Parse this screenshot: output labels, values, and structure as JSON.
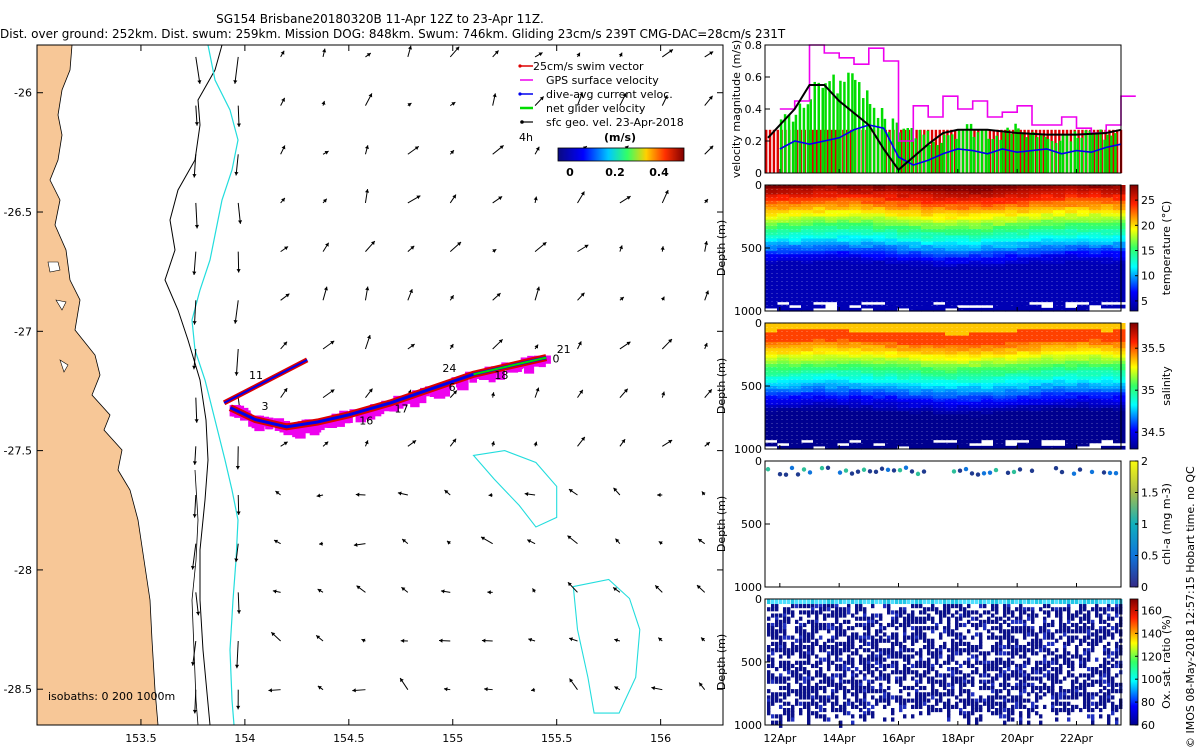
{
  "header": {
    "line1": "SG154 Brisbane20180320B 11-Apr 12Z to 23-Apr 11Z.",
    "line2": "Dist. over ground: 252km. Dist. swum: 259km. Mission DOG: 848km. Swum: 746km. Gliding 23cm/s 239T CMG-DAC=28cm/s 231T"
  },
  "credit": "© IMOS 08-May-2018 12:57:15 Hobart time. no QC",
  "colors": {
    "land": "#f7c797",
    "coast": "#000000",
    "iso200": "#22dddd",
    "swim": "#dd0000",
    "gps": "#ee00ee",
    "dac": "#0000ee",
    "netglider": "#00dd00",
    "sfc": "#000000"
  },
  "chart_data": [
    {
      "type": "map",
      "name": "track-map",
      "xlim": [
        153,
        156.3
      ],
      "ylim": [
        -28.65,
        -25.8
      ],
      "xticks": [
        153.5,
        154,
        154.5,
        155,
        155.5,
        156
      ],
      "yticks": [
        -26,
        -26.5,
        -27,
        -27.5,
        -28,
        -28.5
      ],
      "xticklabels": [
        "153.5",
        "154",
        "154.5",
        "155",
        "155.5",
        "156"
      ],
      "yticklabels": [
        "-26",
        "-26.5",
        "-27",
        "-27.5",
        "-28",
        "-28.5"
      ],
      "legend": {
        "items": [
          "25cm/s swim vector",
          "GPS surface velocity",
          "dive-avg current veloc.",
          "net glider velocity",
          "sfc geo. vel. 23-Apr-2018"
        ],
        "time_label": "4h",
        "unit_label": "(m/s)",
        "colorbar_ticks": [
          "0",
          "0.2",
          "0.4"
        ],
        "colorbar_range": [
          0,
          0.5
        ]
      },
      "isobath_label": "isobaths: 0   200  1000m",
      "track_north_leg": {
        "lon": [
          153.9,
          154.3
        ],
        "lat": [
          -27.3,
          -27.12
        ]
      },
      "track_main": {
        "lon": [
          153.93,
          154.05,
          154.2,
          154.35,
          154.5,
          154.7,
          154.9,
          155.1,
          155.3,
          155.45
        ],
        "lat": [
          -27.32,
          -27.37,
          -27.4,
          -27.38,
          -27.35,
          -27.3,
          -27.24,
          -27.18,
          -27.14,
          -27.11
        ]
      },
      "day_labels": [
        {
          "text": "3",
          "lon": 154.08,
          "lat": -27.33
        },
        {
          "text": "11",
          "lon": 154.02,
          "lat": -27.2
        },
        {
          "text": "16",
          "lon": 154.55,
          "lat": -27.39
        },
        {
          "text": "17",
          "lon": 154.72,
          "lat": -27.34
        },
        {
          "text": "6",
          "lon": 154.98,
          "lat": -27.25
        },
        {
          "text": "24",
          "lon": 154.95,
          "lat": -27.17
        },
        {
          "text": "18",
          "lon": 155.2,
          "lat": -27.2
        },
        {
          "text": "21",
          "lon": 155.5,
          "lat": -27.09
        },
        {
          "text": "0",
          "lon": 155.48,
          "lat": -27.13
        }
      ],
      "eddies": [
        {
          "lon": [
            155.1,
            155.25,
            155.4,
            155.5,
            155.5,
            155.4,
            155.32,
            155.2,
            155.1
          ],
          "lat": [
            -27.52,
            -27.5,
            -27.55,
            -27.65,
            -27.78,
            -27.82,
            -27.73,
            -27.62,
            -27.52
          ]
        },
        {
          "lon": [
            155.58,
            155.75,
            155.85,
            155.9,
            155.88,
            155.8,
            155.68,
            155.65,
            155.6,
            155.58
          ],
          "lat": [
            -28.07,
            -28.04,
            -28.12,
            -28.25,
            -28.45,
            -28.6,
            -28.6,
            -28.45,
            -28.25,
            -28.07
          ]
        }
      ]
    },
    {
      "type": "bar-line",
      "name": "velocity-panel",
      "ylabel": "velocity magnitude (m/s)",
      "ylim": [
        0,
        0.8
      ],
      "yticks": [
        0,
        0.2,
        0.4,
        0.6,
        0.8
      ],
      "xlim": [
        11.5,
        23.5
      ],
      "swim_bar": 0.27,
      "series": [
        {
          "name": "net glider velocity",
          "color": "#00dd00",
          "x": [
            12,
            12.5,
            13,
            13.5,
            14,
            14.5,
            15,
            15.5,
            16,
            17,
            17.5,
            18,
            18.5,
            19,
            19.5,
            20,
            20.5,
            21,
            21.5,
            22,
            22.5,
            23
          ],
          "values": [
            0.33,
            0.38,
            0.5,
            0.55,
            0.58,
            0.55,
            0.4,
            0.3,
            0.25,
            0.2,
            0.25,
            0.28,
            0.26,
            0.24,
            0.27,
            0.25,
            0.24,
            0.22,
            0.23,
            0.25,
            0.24,
            0.26
          ]
        },
        {
          "name": "GPS surface velocity",
          "color": "#ee00ee",
          "x": [
            12,
            12.5,
            13,
            13.5,
            14,
            14.5,
            15,
            15.5,
            16,
            16.5,
            17,
            17.5,
            18,
            18.5,
            19,
            19.5,
            20,
            20.5,
            21,
            21.5,
            22,
            22.5,
            23,
            23.5
          ],
          "values": [
            0.4,
            0.45,
            0.8,
            0.75,
            0.72,
            0.68,
            0.78,
            0.7,
            0.2,
            0.42,
            0.35,
            0.48,
            0.4,
            0.45,
            0.35,
            0.38,
            0.42,
            0.3,
            0.3,
            0.35,
            0.28,
            0.25,
            0.3,
            0.48
          ]
        },
        {
          "name": "dive-avg current veloc.",
          "color": "#0000ee",
          "x": [
            12,
            12.5,
            13,
            13.5,
            14,
            14.5,
            15,
            15.5,
            16,
            16.5,
            17,
            17.5,
            18,
            18.5,
            19,
            19.5,
            20,
            20.5,
            21,
            21.5,
            22,
            22.5,
            23,
            23.5
          ],
          "values": [
            0.15,
            0.2,
            0.18,
            0.2,
            0.22,
            0.27,
            0.3,
            0.28,
            0.1,
            0.05,
            0.08,
            0.12,
            0.15,
            0.14,
            0.12,
            0.15,
            0.13,
            0.14,
            0.15,
            0.12,
            0.14,
            0.13,
            0.16,
            0.18
          ]
        },
        {
          "name": "sfc geo. vel.",
          "color": "#000000",
          "x": [
            11.6,
            12.5,
            13,
            13.5,
            14,
            15,
            15.5,
            16,
            16.5,
            17,
            17.5,
            18,
            18.5,
            19,
            20,
            21,
            22,
            23,
            23.5
          ],
          "values": [
            0.22,
            0.4,
            0.55,
            0.55,
            0.45,
            0.3,
            0.15,
            0.02,
            0.1,
            0.18,
            0.25,
            0.27,
            0.27,
            0.27,
            0.25,
            0.24,
            0.24,
            0.25,
            0.27
          ]
        }
      ]
    },
    {
      "type": "heatmap",
      "name": "temperature-section",
      "ylabel": "Depth (m)",
      "ylim": [
        0,
        1000
      ],
      "yticks": [
        0,
        500,
        1000
      ],
      "colorbar_label": "temperature (°C)",
      "colorbar_ticks": [
        5,
        10,
        15,
        20,
        25
      ],
      "colorbar_range": [
        3,
        28
      ]
    },
    {
      "type": "heatmap",
      "name": "salinity-section",
      "ylabel": "Depth (m)",
      "ylim": [
        0,
        1000
      ],
      "yticks": [
        0,
        500,
        1000
      ],
      "colorbar_label": "salinity",
      "colorbar_ticks": [
        34.5,
        35,
        35.5
      ],
      "colorbar_range": [
        34.3,
        35.8
      ]
    },
    {
      "type": "scatter",
      "name": "chla-section",
      "ylabel": "Depth (m)",
      "ylim": [
        0,
        1000
      ],
      "yticks": [
        0,
        500,
        1000
      ],
      "colorbar_label": "chl-a (mg m-3)",
      "colorbar_ticks": [
        0,
        0.5,
        1,
        1.5,
        2
      ],
      "colorbar_range": [
        0,
        2
      ]
    },
    {
      "type": "scatter",
      "name": "oxygen-section",
      "ylabel": "Depth (m)",
      "ylim": [
        0,
        1000
      ],
      "yticks": [
        0,
        500,
        1000
      ],
      "colorbar_label": "Ox. sat. ratio (%)",
      "colorbar_ticks": [
        60,
        80,
        100,
        120,
        140,
        160
      ],
      "colorbar_range": [
        60,
        170
      ]
    },
    {
      "type": "time-axis",
      "name": "shared-time-axis",
      "xlim": [
        11.5,
        23.5
      ],
      "ticks": [
        12,
        14,
        16,
        18,
        20,
        22
      ],
      "ticklabels": [
        "12Apr",
        "14Apr",
        "16Apr",
        "18Apr",
        "20Apr",
        "22Apr"
      ]
    }
  ]
}
